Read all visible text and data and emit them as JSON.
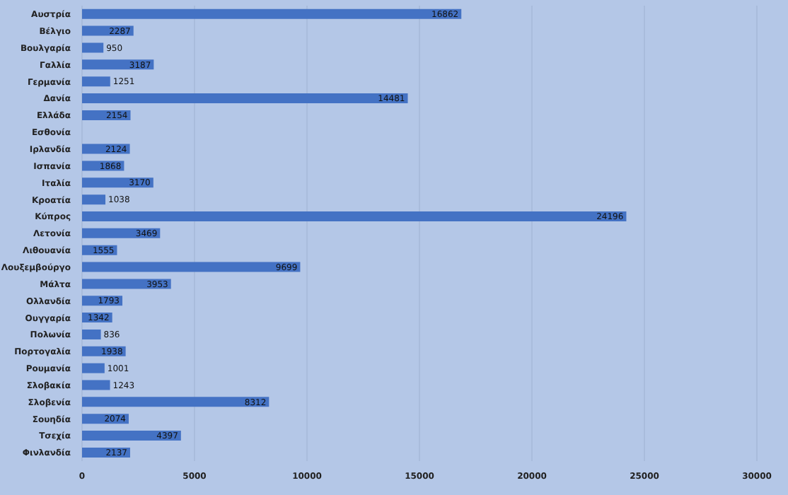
{
  "chart_data": {
    "type": "bar",
    "orientation": "horizontal",
    "categories": [
      "Αυστρία",
      "Βέλγιο",
      "Βουλγαρία",
      "Γαλλία",
      "Γερμανία",
      "Δανία",
      "Ελλάδα",
      "Εσθονία",
      "Ιρλανδία",
      "Ισπανία",
      "Ιταλία",
      "Κροατία",
      "Κύπρος",
      "Λετονία",
      "Λιθουανία",
      "Λουξεμβούργο",
      "Μάλτα",
      "Ολλανδία",
      "Ουγγαρία",
      "Πολωνία",
      "Πορτογαλία",
      "Ρουμανία",
      "Σλοβακία",
      "Σλοβενία",
      "Σουηδία",
      "Τσεχία",
      "Φινλανδία"
    ],
    "values": [
      16862,
      2287,
      950,
      3187,
      1251,
      14481,
      2154,
      null,
      2124,
      1868,
      3170,
      1038,
      24196,
      3469,
      1555,
      9699,
      3953,
      1793,
      1342,
      836,
      1938,
      1001,
      1243,
      8312,
      2074,
      4397,
      2137
    ],
    "color": "#4472c4",
    "xlim": [
      0,
      30000
    ],
    "xticks": [
      0,
      5000,
      10000,
      15000,
      20000,
      25000,
      30000
    ],
    "grid": "x",
    "data_labels": true
  }
}
